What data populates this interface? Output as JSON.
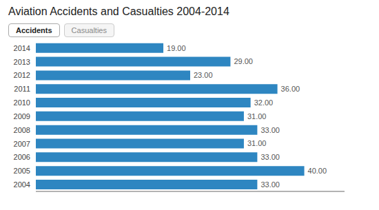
{
  "chart_data": {
    "type": "bar",
    "orientation": "horizontal",
    "title": "Aviation Accidents and Casualties 2004-2014",
    "annotations": [
      "Accidents",
      "Casualties"
    ],
    "categories": [
      "2014",
      "2013",
      "2012",
      "2011",
      "2010",
      "2009",
      "2008",
      "2007",
      "2006",
      "2005",
      "2004"
    ],
    "values": [
      19,
      29,
      23,
      36,
      32,
      31,
      33,
      31,
      33,
      40,
      33
    ],
    "value_labels": [
      "19.00",
      "29.00",
      "23.00",
      "36.00",
      "32.00",
      "31.00",
      "33.00",
      "31.00",
      "33.00",
      "40.00",
      "33.00"
    ],
    "data_labels": true,
    "color": "#2e86c1",
    "xlim": [
      0,
      46
    ],
    "tick_labels": "y",
    "grid": false
  }
}
